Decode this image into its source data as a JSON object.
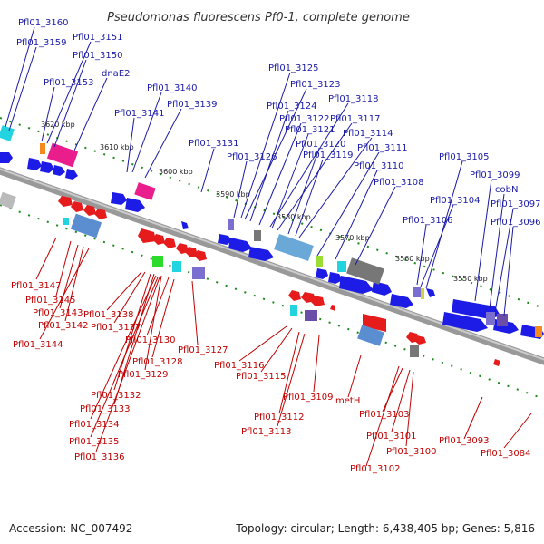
{
  "title": "Pseudomonas fluorescens Pf0-1, complete genome",
  "footer": {
    "accession": "Accession: NC_007492",
    "topology": "Topology: circular; Length: 6,438,405 bp; Genes: 5,816"
  },
  "colors": {
    "forward": "#1c1ce6",
    "reverse": "#e61c1c",
    "top_label": "#1a1aa6",
    "bottom_label": "#c00000",
    "backbone": "#777777",
    "tick": "#1a8a1a"
  },
  "kbp_labels": [
    "3620 kbp",
    "3610 kbp",
    "3600 kbp",
    "3590 kbp",
    "3580 kbp",
    "3570 kbp",
    "3560 kbp",
    "3550 kbp"
  ],
  "top_labels": [
    "Pfl01_3160",
    "Pfl01_3159",
    "Pfl01_3151",
    "Pfl01_3150",
    "Pfl01_3153",
    "dnaE2",
    "Pfl01_3140",
    "Pfl01_3141",
    "Pfl01_3139",
    "Pfl01_3131",
    "Pfl01_3126",
    "Pfl01_3125",
    "Pfl01_3123",
    "Pfl01_3124",
    "Pfl01_3118",
    "Pfl01_3122",
    "Pfl01_3117",
    "Pfl01_3121",
    "Pfl01_3114",
    "Pfl01_3120",
    "Pfl01_3111",
    "Pfl01_3119",
    "Pfl01_3110",
    "Pfl01_3108",
    "Pfl01_3105",
    "Pfl01_3099",
    "cobN",
    "Pfl01_3104",
    "Pfl01_3097",
    "Pfl01_3106",
    "Pfl01_3096"
  ],
  "bottom_labels": [
    "Pfl01_3147",
    "Pfl01_3145",
    "Pfl01_3143",
    "Pfl01_3142",
    "Pfl01_3144",
    "Pfl01_3138",
    "Pfl01_3137",
    "Pfl01_3130",
    "Pfl01_3128",
    "Pfl01_3129",
    "Pfl01_3132",
    "Pfl01_3133",
    "Pfl01_3134",
    "Pfl01_3135",
    "Pfl01_3136",
    "Pfl01_3127",
    "Pfl01_3116",
    "Pfl01_3115",
    "Pfl01_3109",
    "Pfl01_3112",
    "Pfl01_3113",
    "metH",
    "Pfl01_3103",
    "Pfl01_3101",
    "Pfl01_3100",
    "Pfl01_3102",
    "Pfl01_3093",
    "Pfl01_3084"
  ]
}
